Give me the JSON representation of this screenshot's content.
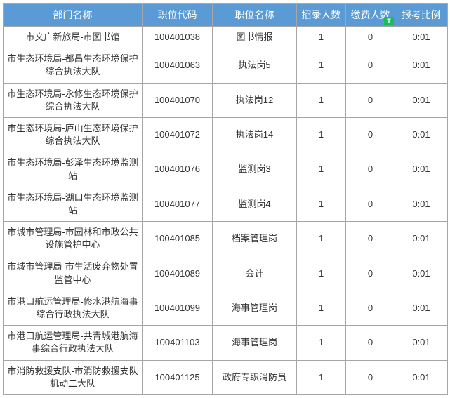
{
  "header_bg": "#5b9bd5",
  "header_color": "#ffffff",
  "border_color": "#a6a6a6",
  "columns": [
    {
      "key": "dept",
      "label": "部门名称"
    },
    {
      "key": "code",
      "label": "职位代码"
    },
    {
      "key": "pos",
      "label": "职位名称"
    },
    {
      "key": "recruit",
      "label": "招录人数"
    },
    {
      "key": "paid",
      "label": "缴费人数"
    },
    {
      "key": "ratio",
      "label": "报考比例"
    }
  ],
  "badge_text": "T",
  "rows": [
    {
      "dept": "市文广新旅局-市图书馆",
      "code": "100401038",
      "pos": "图书情报",
      "recruit": "1",
      "paid": "0",
      "ratio": "0:01"
    },
    {
      "dept": "市生态环境局-都昌生态环境保护综合执法大队",
      "code": "100401063",
      "pos": "执法岗5",
      "recruit": "1",
      "paid": "0",
      "ratio": "0:01"
    },
    {
      "dept": "市生态环境局-永修生态环境保护综合执法大队",
      "code": "100401070",
      "pos": "执法岗12",
      "recruit": "1",
      "paid": "0",
      "ratio": "0:01"
    },
    {
      "dept": "市生态环境局-庐山生态环境保护综合执法大队",
      "code": "100401072",
      "pos": "执法岗14",
      "recruit": "1",
      "paid": "0",
      "ratio": "0:01"
    },
    {
      "dept": "市生态环境局-彭泽生态环境监测站",
      "code": "100401076",
      "pos": "监测岗3",
      "recruit": "1",
      "paid": "0",
      "ratio": "0:01"
    },
    {
      "dept": "市生态环境局-湖口生态环境监测站",
      "code": "100401077",
      "pos": "监测岗4",
      "recruit": "1",
      "paid": "0",
      "ratio": "0:01"
    },
    {
      "dept": "市城市管理局-市园林和市政公共设施管护中心",
      "code": "100401085",
      "pos": "档案管理岗",
      "recruit": "1",
      "paid": "0",
      "ratio": "0:01"
    },
    {
      "dept": "市城市管理局-市生活废弃物处置监管中心",
      "code": "100401089",
      "pos": "会计",
      "recruit": "1",
      "paid": "0",
      "ratio": "0:01"
    },
    {
      "dept": "市港口航运管理局-修水港航海事综合行政执法大队",
      "code": "100401099",
      "pos": "海事管理岗",
      "recruit": "1",
      "paid": "0",
      "ratio": "0:01"
    },
    {
      "dept": "市港口航运管理局-共青城港航海事综合行政执法大队",
      "code": "100401103",
      "pos": "海事管理岗",
      "recruit": "1",
      "paid": "0",
      "ratio": "0:01"
    },
    {
      "dept": "市消防救援支队-市消防救援支队机动二大队",
      "code": "100401125",
      "pos": "政府专职消防员",
      "recruit": "1",
      "paid": "0",
      "ratio": "0:01"
    }
  ]
}
